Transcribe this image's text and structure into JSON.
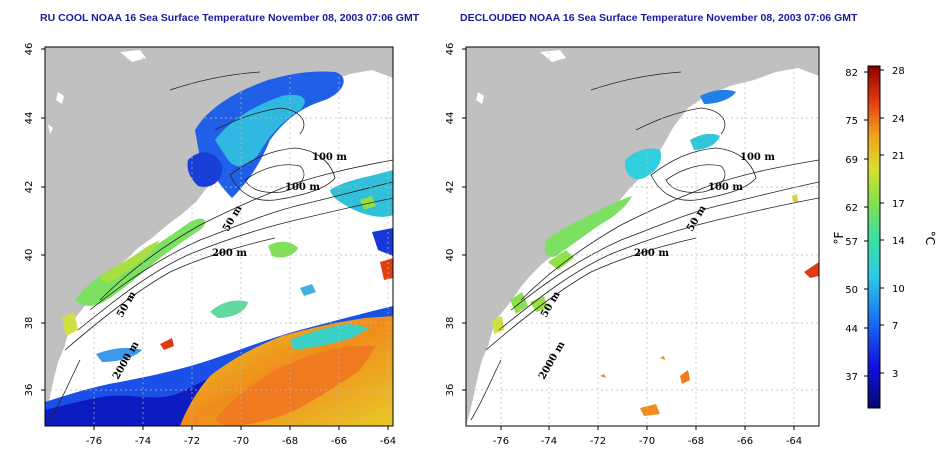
{
  "titles": {
    "left": "RU COOL NOAA 16 Sea Surface Temperature November 08, 2003 07:06 GMT",
    "right": "DECLOUDED NOAA 16 Sea Surface Temperature November 08, 2003 07:06 GMT"
  },
  "map": {
    "x_ticks": [
      "-76",
      "-74",
      "-72",
      "-70",
      "-68",
      "-66",
      "-64"
    ],
    "y_ticks": [
      "36",
      "38",
      "40",
      "42",
      "44",
      "46"
    ],
    "contour_labels": [
      "100 m",
      "100 m",
      "50 m",
      "200 m",
      "50 m",
      "2000 m"
    ]
  },
  "colorbar": {
    "fahrenheit_unit": "°F",
    "celsius_unit": "°C",
    "fahrenheit_ticks": [
      "82",
      "75",
      "69",
      "62",
      "57",
      "50",
      "44",
      "37"
    ],
    "celsius_ticks": [
      "28",
      "24",
      "21",
      "17",
      "14",
      "10",
      "7",
      "3"
    ]
  },
  "colors": {
    "land": "#c0c0c0",
    "ocean_clear": "#ffffff",
    "title": "#1a1aa0",
    "scale_cold": "#08086e",
    "scale_mid": "#3cc8c8",
    "scale_warm": "#e6e632",
    "scale_hot": "#8c0000"
  }
}
